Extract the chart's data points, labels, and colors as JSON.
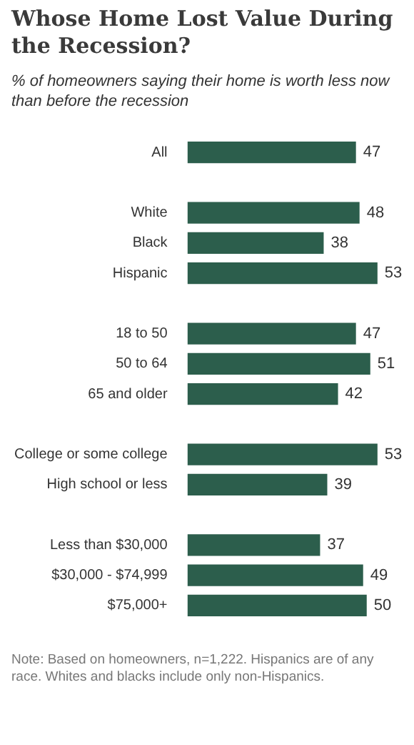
{
  "chart_data": {
    "type": "bar",
    "orientation": "horizontal",
    "title": "Whose Home Lost Value During the Recession?",
    "subtitle": "% of homeowners saying their home is worth less now than before the recession",
    "categories": [
      "All",
      null,
      "White",
      "Black",
      "Hispanic",
      null,
      "18 to 50",
      "50 to 64",
      "65 and older",
      null,
      "College or some college",
      "High school or less",
      null,
      "Less than $30,000",
      "$30,000 - $74,999",
      "$75,000+"
    ],
    "values": [
      47,
      null,
      48,
      38,
      53,
      null,
      47,
      51,
      42,
      null,
      53,
      39,
      null,
      37,
      49,
      50
    ],
    "color": "#2c5e4c",
    "data_labels": true,
    "grid": false,
    "legend": false,
    "annotations": [
      "Note: Based on homeowners, n=1,222. Hispanics are of any race. Whites and blacks include only non-Hispanics."
    ]
  }
}
